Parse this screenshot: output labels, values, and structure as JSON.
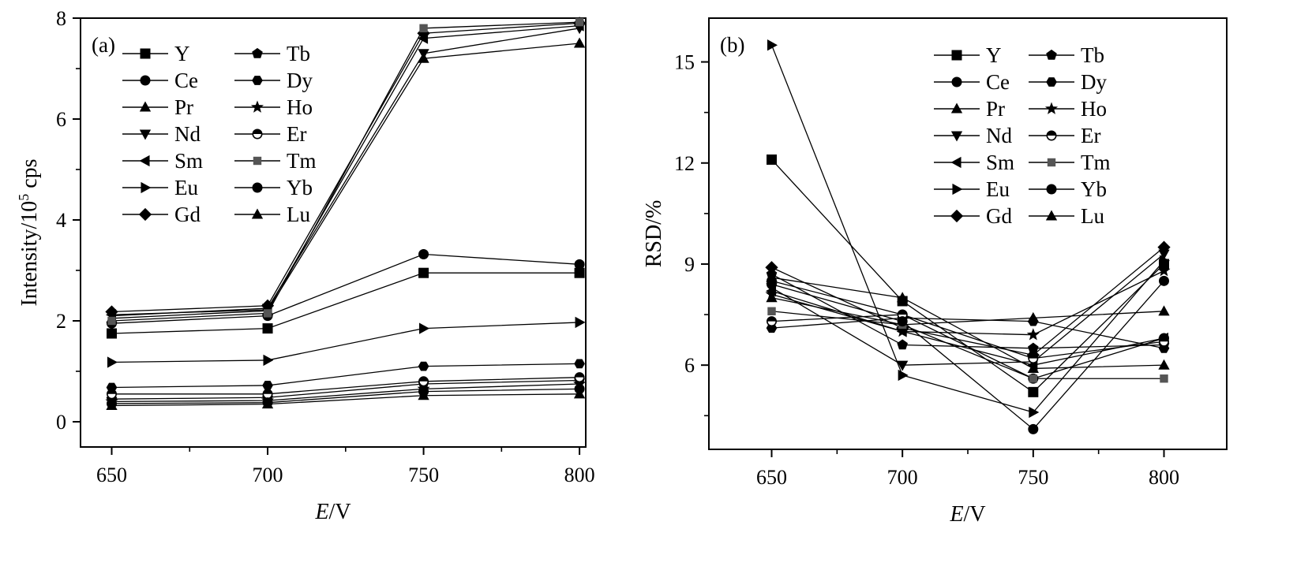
{
  "chart_data": [
    {
      "type": "line",
      "panel_label": "(a)",
      "xlabel": "E/V",
      "ylabel": "Intensity/10^5 cps",
      "x": [
        650,
        700,
        750,
        800
      ],
      "xticks": [
        650,
        700,
        750,
        800
      ],
      "xlim": [
        640,
        802
      ],
      "yticks": [
        0,
        2,
        4,
        6,
        8
      ],
      "ylim": [
        -0.5,
        8
      ],
      "legend_placement": "top-left",
      "series": [
        {
          "name": "Y",
          "marker": "square",
          "values": [
            1.75,
            1.85,
            2.95,
            2.95
          ]
        },
        {
          "name": "Ce",
          "marker": "circle",
          "values": [
            1.95,
            2.1,
            3.32,
            3.12
          ]
        },
        {
          "name": "Pr",
          "marker": "triangle-up",
          "values": [
            2.05,
            2.2,
            7.2,
            7.5
          ]
        },
        {
          "name": "Nd",
          "marker": "triangle-down",
          "values": [
            2.1,
            2.25,
            7.3,
            7.8
          ]
        },
        {
          "name": "Sm",
          "marker": "triangle-left",
          "values": [
            2.12,
            2.22,
            7.6,
            7.85
          ]
        },
        {
          "name": "Eu",
          "marker": "triangle-right",
          "values": [
            1.18,
            1.22,
            1.85,
            1.97
          ]
        },
        {
          "name": "Gd",
          "marker": "diamond",
          "values": [
            2.18,
            2.3,
            7.7,
            7.9
          ]
        },
        {
          "name": "Tb",
          "marker": "pentagon",
          "values": [
            0.45,
            0.48,
            0.75,
            0.82
          ]
        },
        {
          "name": "Dy",
          "marker": "hexagon",
          "values": [
            0.68,
            0.72,
            1.1,
            1.15
          ]
        },
        {
          "name": "Ho",
          "marker": "star",
          "values": [
            0.4,
            0.42,
            0.65,
            0.75
          ]
        },
        {
          "name": "Er",
          "marker": "circle-half",
          "values": [
            0.55,
            0.55,
            0.8,
            0.88
          ]
        },
        {
          "name": "Tm",
          "marker": "square-small",
          "values": [
            2.0,
            2.15,
            7.8,
            7.92
          ]
        },
        {
          "name": "Yb",
          "marker": "circle",
          "values": [
            0.36,
            0.38,
            0.6,
            0.65
          ]
        },
        {
          "name": "Lu",
          "marker": "triangle-up",
          "values": [
            0.32,
            0.35,
            0.52,
            0.55
          ]
        }
      ]
    },
    {
      "type": "line",
      "panel_label": "(b)",
      "xlabel": "E/V",
      "ylabel": "RSD/%",
      "x": [
        650,
        700,
        750,
        800
      ],
      "xticks": [
        650,
        700,
        750,
        800
      ],
      "xlim": [
        626,
        824
      ],
      "yticks": [
        6,
        9,
        12,
        15
      ],
      "ylim": [
        3.5,
        16.3
      ],
      "legend_placement": "top-right",
      "series": [
        {
          "name": "Y",
          "marker": "square",
          "values": [
            12.1,
            7.9,
            5.2,
            9.0
          ]
        },
        {
          "name": "Ce",
          "marker": "circle",
          "values": [
            8.5,
            7.5,
            5.6,
            6.8
          ]
        },
        {
          "name": "Pr",
          "marker": "triangle-up",
          "values": [
            8.0,
            7.2,
            7.4,
            7.6
          ]
        },
        {
          "name": "Nd",
          "marker": "triangle-down",
          "values": [
            8.3,
            6.0,
            6.1,
            9.3
          ]
        },
        {
          "name": "Sm",
          "marker": "triangle-left",
          "values": [
            8.2,
            7.0,
            6.0,
            6.8
          ]
        },
        {
          "name": "Eu",
          "marker": "triangle-right",
          "values": [
            15.5,
            5.7,
            4.6,
            9.1
          ]
        },
        {
          "name": "Gd",
          "marker": "diamond",
          "values": [
            8.9,
            7.1,
            6.3,
            9.5
          ]
        },
        {
          "name": "Tb",
          "marker": "pentagon",
          "values": [
            8.7,
            6.6,
            6.5,
            6.6
          ]
        },
        {
          "name": "Dy",
          "marker": "hexagon",
          "values": [
            7.1,
            7.4,
            7.3,
            6.5
          ]
        },
        {
          "name": "Ho",
          "marker": "star",
          "values": [
            8.1,
            7.0,
            6.9,
            8.8
          ]
        },
        {
          "name": "Er",
          "marker": "circle-half",
          "values": [
            7.3,
            7.5,
            6.2,
            6.7
          ]
        },
        {
          "name": "Tm",
          "marker": "square-small",
          "values": [
            7.6,
            7.2,
            5.6,
            5.6
          ]
        },
        {
          "name": "Yb",
          "marker": "circle",
          "values": [
            8.4,
            7.3,
            4.1,
            8.5
          ]
        },
        {
          "name": "Lu",
          "marker": "triangle-up",
          "values": [
            8.6,
            8.0,
            5.9,
            6.0
          ]
        }
      ]
    }
  ]
}
